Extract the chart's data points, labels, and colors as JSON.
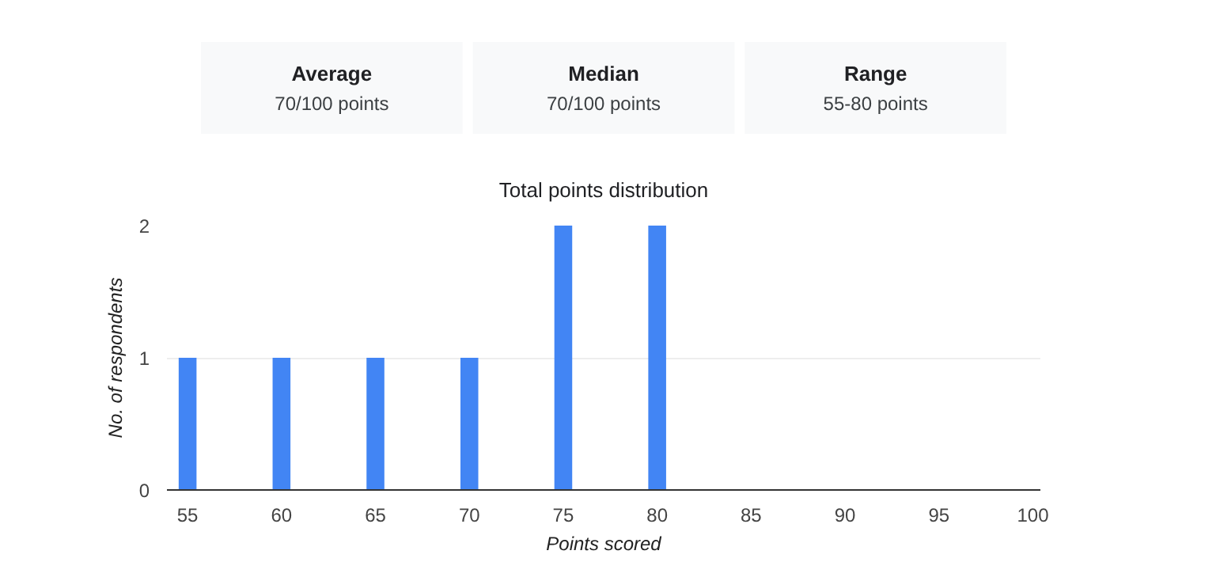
{
  "chart_data": [
    {
      "type": "other",
      "annotations": [
        "Average",
        "70/100 points",
        "Median",
        "70/100 points",
        "Range",
        "55-80 points"
      ]
    },
    {
      "type": "bar",
      "title": "Total points distribution",
      "xlabel": "Points scored",
      "ylabel": "No. of respondents",
      "categories": [
        "55",
        "60",
        "65",
        "70",
        "75",
        "80",
        "85",
        "90",
        "95",
        "100"
      ],
      "values": [
        1,
        1,
        1,
        1,
        2,
        2,
        0,
        0,
        0,
        0
      ],
      "color": "#4285f4",
      "ylim": [
        0,
        2
      ],
      "yticks": [
        0,
        1,
        2
      ],
      "grid": "y"
    }
  ]
}
